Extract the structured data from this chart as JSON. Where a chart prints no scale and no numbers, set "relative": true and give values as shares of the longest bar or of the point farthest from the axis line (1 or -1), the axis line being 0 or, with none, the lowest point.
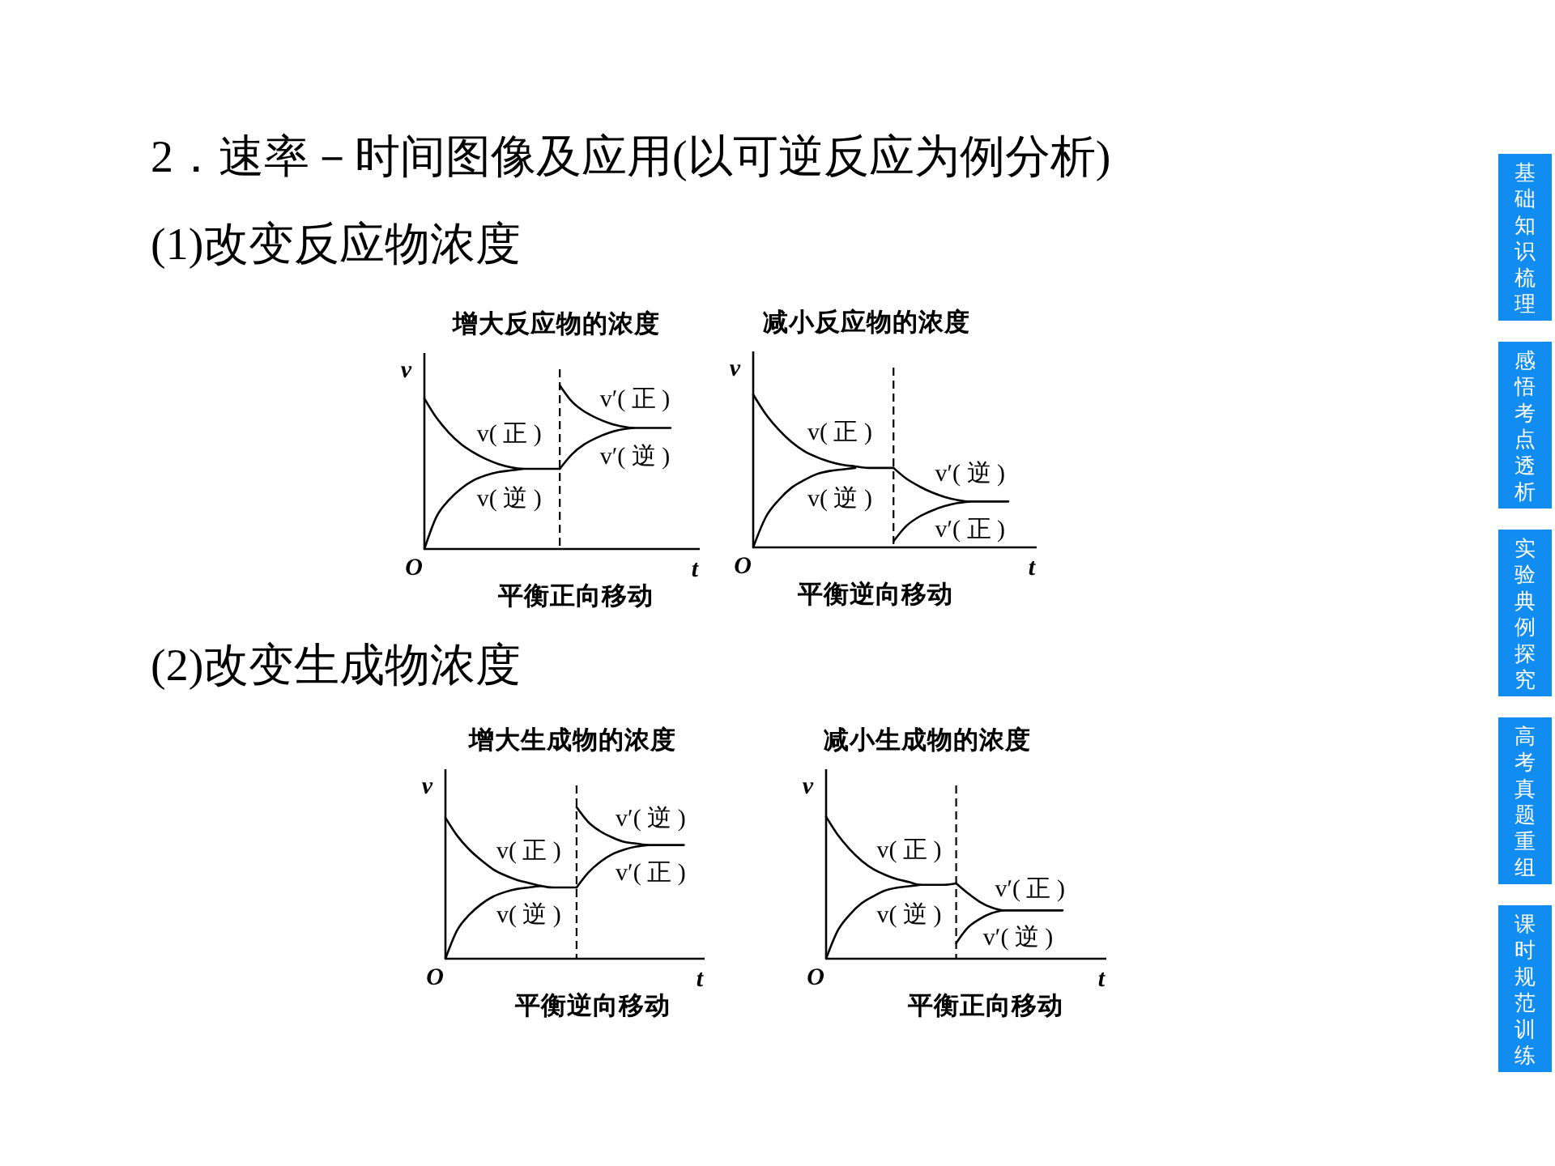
{
  "chart_data": [
    {
      "type": "other",
      "title": "2．速率－时间图像及应用(以可逆反应为例分析)",
      "subtitle": "(1)改变反应物浓度"
    },
    {
      "type": "line",
      "title": "增大反应物的浓度",
      "xlabel": "t",
      "ylabel": "v",
      "annotations": [
        "O",
        "平衡正向移动"
      ],
      "relative": true,
      "categories": [
        null,
        null,
        null,
        null,
        null,
        null,
        null,
        null,
        null,
        null,
        null,
        null,
        null,
        null,
        null,
        null,
        null,
        null,
        null,
        null,
        null
      ],
      "series": [
        {
          "name": "v( 正 )",
          "color": "#000000",
          "values": [
            0.92,
            0.8,
            0.71,
            0.64,
            0.59,
            0.55,
            0.52,
            0.5,
            0.49,
            0.49,
            0.49,
            0.49,
            null,
            null,
            null,
            null,
            null,
            null,
            null,
            null,
            null
          ]
        },
        {
          "name": "v( 逆 )",
          "color": "#000000",
          "values": [
            0,
            0.2,
            0.3,
            0.37,
            0.42,
            0.45,
            0.47,
            0.48,
            0.49,
            null,
            null,
            null,
            null,
            null,
            null,
            null,
            null,
            null,
            null,
            null,
            null
          ]
        },
        {
          "name": "v′( 正 )",
          "color": "#000000",
          "values": [
            null,
            null,
            null,
            null,
            null,
            null,
            null,
            null,
            null,
            null,
            null,
            1.0,
            0.9,
            0.84,
            0.8,
            0.77,
            0.75,
            0.74,
            0.74,
            0.74,
            0.74
          ]
        },
        {
          "name": "v′( 逆 )",
          "color": "#000000",
          "values": [
            null,
            null,
            null,
            null,
            null,
            null,
            null,
            null,
            null,
            null,
            null,
            0.49,
            0.58,
            0.64,
            0.68,
            0.71,
            0.73,
            0.74,
            null,
            null,
            null
          ]
        }
      ]
    },
    {
      "type": "line",
      "title": "减小反应物的浓度",
      "xlabel": "t",
      "ylabel": "v",
      "annotations": [
        "O",
        "平衡逆向移动"
      ],
      "relative": true,
      "categories": [
        null,
        null,
        null,
        null,
        null,
        null,
        null,
        null,
        null,
        null,
        null,
        null,
        null,
        null,
        null,
        null,
        null,
        null,
        null,
        null,
        null
      ],
      "series": [
        {
          "name": "v( 正 )",
          "color": "#000000",
          "values": [
            1.0,
            0.87,
            0.77,
            0.69,
            0.63,
            0.59,
            0.56,
            0.54,
            0.53,
            0.52,
            0.52,
            0.52,
            null,
            null,
            null,
            null,
            null,
            null,
            null,
            null,
            null
          ]
        },
        {
          "name": "v( 逆 )",
          "color": "#000000",
          "values": [
            0,
            0.2,
            0.31,
            0.39,
            0.44,
            0.48,
            0.5,
            0.51,
            0.52,
            null,
            null,
            null,
            null,
            null,
            null,
            null,
            null,
            null,
            null,
            null,
            null
          ]
        },
        {
          "name": "v′( 正 )",
          "color": "#000000",
          "values": [
            null,
            null,
            null,
            null,
            null,
            null,
            null,
            null,
            null,
            null,
            null,
            0.04,
            0.14,
            0.2,
            0.24,
            0.27,
            0.29,
            0.3,
            null,
            null,
            null
          ]
        },
        {
          "name": "v′( 逆 )",
          "color": "#000000",
          "values": [
            null,
            null,
            null,
            null,
            null,
            null,
            null,
            null,
            null,
            null,
            null,
            0.52,
            0.45,
            0.4,
            0.36,
            0.33,
            0.31,
            0.3,
            0.3,
            0.3,
            0.3
          ]
        }
      ]
    },
    {
      "type": "other",
      "title": "(2)改变生成物浓度"
    },
    {
      "type": "line",
      "title": "增大生成物的浓度",
      "xlabel": "t",
      "ylabel": "v",
      "annotations": [
        "O",
        "平衡逆向移动"
      ],
      "relative": true,
      "categories": [
        null,
        null,
        null,
        null,
        null,
        null,
        null,
        null,
        null,
        null,
        null,
        null,
        null,
        null,
        null,
        null,
        null,
        null,
        null,
        null,
        null
      ],
      "series": [
        {
          "name": "v( 正 )",
          "color": "#000000",
          "values": [
            0.93,
            0.81,
            0.72,
            0.65,
            0.59,
            0.55,
            0.52,
            0.5,
            0.48,
            0.47,
            0.47,
            0.47,
            null,
            null,
            null,
            null,
            null,
            null,
            null,
            null,
            null
          ]
        },
        {
          "name": "v( 逆 )",
          "color": "#000000",
          "values": [
            0,
            0.19,
            0.29,
            0.36,
            0.41,
            0.44,
            0.46,
            0.47,
            0.48,
            null,
            null,
            null,
            null,
            null,
            null,
            null,
            null,
            null,
            null,
            null,
            null
          ]
        },
        {
          "name": "v′( 正 )",
          "color": "#000000",
          "values": [
            null,
            null,
            null,
            null,
            null,
            null,
            null,
            null,
            null,
            null,
            null,
            0.47,
            0.57,
            0.64,
            0.69,
            0.72,
            0.74,
            0.75,
            null,
            null,
            null
          ]
        },
        {
          "name": "v′( 逆 )",
          "color": "#000000",
          "values": [
            null,
            null,
            null,
            null,
            null,
            null,
            null,
            null,
            null,
            null,
            null,
            1.0,
            0.9,
            0.84,
            0.8,
            0.77,
            0.76,
            0.75,
            0.75,
            0.75,
            0.75
          ]
        }
      ]
    },
    {
      "type": "line",
      "title": "减小生成物的浓度",
      "xlabel": "t",
      "ylabel": "v",
      "annotations": [
        "O",
        "平衡正向移动"
      ],
      "relative": true,
      "categories": [
        null,
        null,
        null,
        null,
        null,
        null,
        null,
        null,
        null,
        null,
        null,
        null,
        null,
        null,
        null,
        null,
        null,
        null,
        null,
        null,
        null
      ],
      "series": [
        {
          "name": "v( 正 )",
          "color": "#000000",
          "values": [
            1.0,
            0.87,
            0.77,
            0.69,
            0.63,
            0.59,
            0.56,
            0.54,
            0.52,
            0.52,
            0.52,
            0.53,
            null,
            null,
            null,
            null,
            null,
            null,
            null,
            null,
            null
          ]
        },
        {
          "name": "v( 逆 )",
          "color": "#000000",
          "values": [
            0,
            0.2,
            0.31,
            0.39,
            0.44,
            0.48,
            0.5,
            0.51,
            0.52,
            null,
            null,
            null,
            null,
            null,
            null,
            null,
            null,
            null,
            null,
            null,
            null
          ]
        },
        {
          "name": "v′( 正 )",
          "color": "#000000",
          "values": [
            null,
            null,
            null,
            null,
            null,
            null,
            null,
            null,
            null,
            null,
            null,
            0.53,
            0.46,
            0.4,
            0.36,
            0.34,
            0.34,
            0.34,
            0.34,
            0.34,
            0.34
          ]
        },
        {
          "name": "v′( 逆 )",
          "color": "#000000",
          "values": [
            null,
            null,
            null,
            null,
            null,
            null,
            null,
            null,
            null,
            null,
            null,
            0.11,
            0.22,
            0.28,
            0.32,
            0.34,
            null,
            null,
            null,
            null,
            null
          ]
        }
      ]
    },
    {
      "type": "other",
      "annotations": [
        "基础知识梳理",
        "感悟考点透析",
        "实验典例探究",
        "高考真题重组",
        "课时规范训练"
      ],
      "colors": [
        "#118cf0",
        "#118cf0",
        "#118cf0",
        "#118cf0",
        "#118cf0"
      ]
    }
  ]
}
